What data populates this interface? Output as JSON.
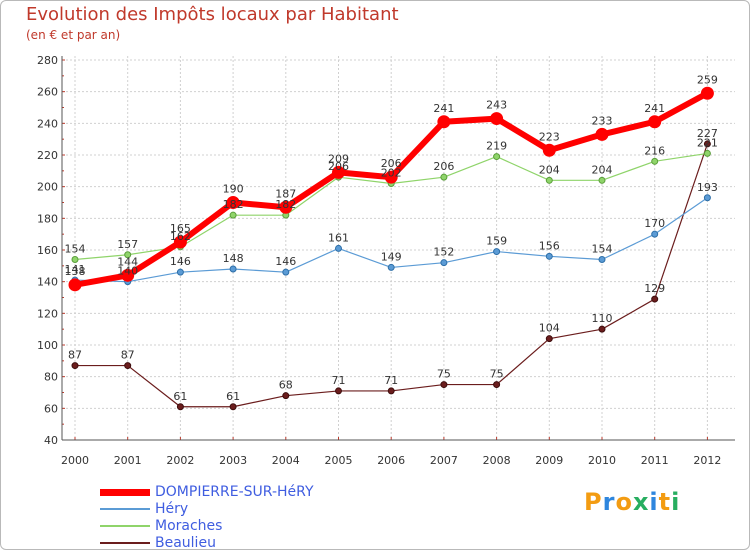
{
  "title": "Evolution des Impôts locaux par Habitant",
  "subtitle": "(en € et par an)",
  "logo": {
    "text": "Proxiti",
    "letters": [
      "P",
      "r",
      "o",
      "x",
      "i",
      "t",
      "i"
    ],
    "colors": [
      "#f39c12",
      "#2e86de",
      "#f39c12",
      "#27ae60",
      "#2e86de",
      "#f39c12",
      "#27ae60"
    ]
  },
  "chart_data": {
    "type": "line",
    "title": "Evolution des Impôts locaux par Habitant",
    "subtitle": "(en € et par an)",
    "xlabel": "",
    "ylabel": "",
    "x": [
      "2000",
      "2001",
      "2002",
      "2003",
      "2004",
      "2005",
      "2006",
      "2007",
      "2008",
      "2009",
      "2010",
      "2011",
      "2012"
    ],
    "ylim": [
      40,
      280
    ],
    "yticks": [
      40,
      60,
      80,
      100,
      120,
      140,
      160,
      180,
      200,
      220,
      240,
      260,
      280
    ],
    "grid": true,
    "legend_position": "bottom-left",
    "series": [
      {
        "name": "DOMPIERRE-SUR-HéRY",
        "color": "#ff0000",
        "values": [
          138,
          144,
          165,
          190,
          187,
          209,
          206,
          241,
          243,
          223,
          233,
          241,
          259
        ],
        "labels": [
          "138",
          "144",
          "165",
          "190",
          "187",
          "209",
          "206",
          "241",
          "243",
          "223",
          "233",
          "241",
          "259"
        ]
      },
      {
        "name": "Héry",
        "color": "#5b9bd5",
        "values": [
          141,
          140,
          146,
          148,
          146,
          161,
          149,
          152,
          159,
          156,
          154,
          170,
          193
        ],
        "labels": [
          "141",
          "140",
          "146",
          "148",
          "146",
          "161",
          "149",
          "152",
          "159",
          "156",
          "154",
          "170",
          "193"
        ]
      },
      {
        "name": "Moraches",
        "color": "#8fd46a",
        "values": [
          154,
          157,
          162,
          182,
          182,
          206,
          202,
          206,
          219,
          204,
          204,
          216,
          221
        ],
        "labels": [
          "154",
          "157",
          "162",
          "182",
          "182",
          "206",
          "202",
          "206",
          "219",
          "204",
          "204",
          "216",
          "221"
        ]
      },
      {
        "name": "Beaulieu",
        "color": "#6b1d1d",
        "values": [
          87,
          87,
          61,
          61,
          68,
          71,
          71,
          75,
          75,
          104,
          110,
          129,
          227
        ],
        "labels": [
          "87",
          "87",
          "61",
          "61",
          "68",
          "71",
          "71",
          "75",
          "75",
          "104",
          "110",
          "129",
          "227"
        ]
      }
    ]
  }
}
